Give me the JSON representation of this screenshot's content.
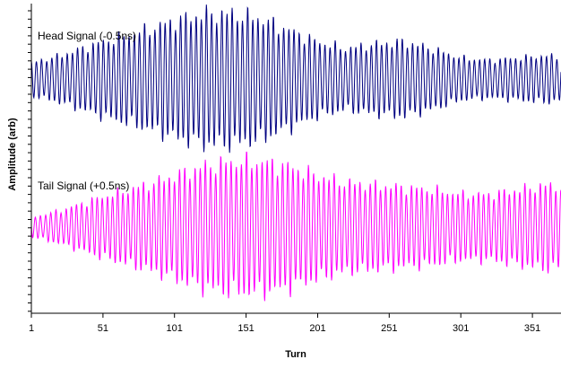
{
  "chart_data": {
    "type": "line",
    "xlabel": "Turn",
    "ylabel": "Amplitude (arb)",
    "xlim": [
      1,
      371
    ],
    "x_ticks": [
      "1",
      "51",
      "101",
      "151",
      "201",
      "251",
      "301",
      "351"
    ],
    "y_tick_labels": "none",
    "grid": false,
    "legend": "none",
    "annotations": [
      {
        "text": "Head Signal (-0.5ns)",
        "series": "Head Signal (-0.5ns)"
      },
      {
        "text": "Tail Signal (+0.5ns)",
        "series": "Tail Signal (+0.5ns)"
      }
    ],
    "series": [
      {
        "name": "Head Signal (-0.5ns)",
        "color": "#000080",
        "oscillation_period_turns": 3.6,
        "envelope_turn": [
          1,
          21,
          51,
          81,
          101,
          121,
          141,
          161,
          181,
          201,
          221,
          241,
          261,
          281,
          301,
          321,
          341,
          361,
          371
        ],
        "envelope_amplitude": [
          0.7,
          1.0,
          1.6,
          2.1,
          2.5,
          2.8,
          2.8,
          2.6,
          2.1,
          1.6,
          1.3,
          1.5,
          1.6,
          1.3,
          0.9,
          0.8,
          0.9,
          1.0,
          0.9
        ]
      },
      {
        "name": "Tail Signal (+0.5ns)",
        "color": "#ff00ff",
        "oscillation_period_turns": 3.6,
        "envelope_turn": [
          1,
          21,
          51,
          81,
          101,
          121,
          141,
          161,
          181,
          201,
          221,
          241,
          261,
          281,
          301,
          321,
          341,
          361,
          371
        ],
        "envelope_amplitude": [
          0.4,
          0.7,
          1.3,
          1.8,
          2.2,
          2.6,
          2.8,
          2.8,
          2.6,
          2.2,
          1.9,
          1.8,
          1.7,
          1.6,
          1.4,
          1.4,
          1.6,
          1.8,
          1.7
        ]
      }
    ]
  }
}
